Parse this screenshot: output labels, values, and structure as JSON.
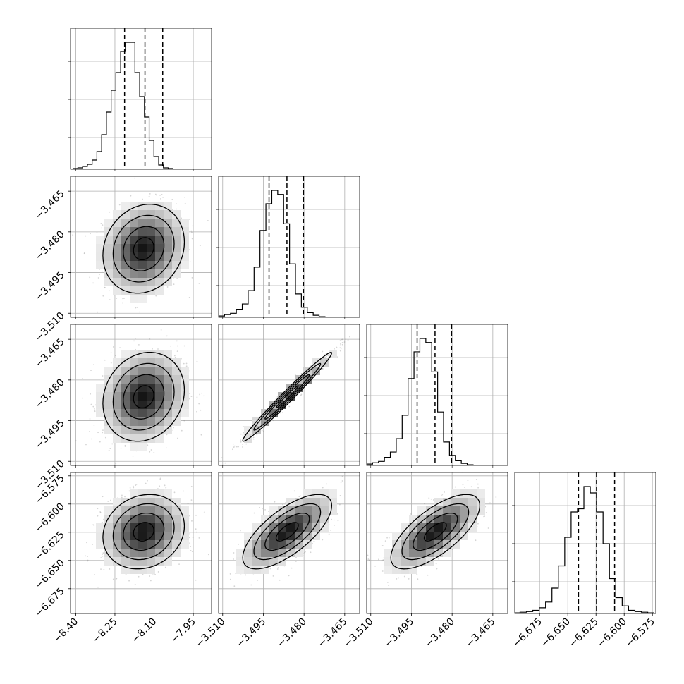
{
  "chart_data": {
    "type": "corner",
    "parameters": [
      {
        "index": 0,
        "hist": {
          "edges_start": -8.41,
          "edges_step": 0.0182,
          "counts": [
            1,
            2,
            4,
            7,
            13,
            25,
            49,
            81,
            112,
            137,
            167,
            180,
            180,
            137,
            103,
            74,
            41,
            18,
            6,
            2,
            1,
            0
          ],
          "ymax": 180,
          "quantiles": [
            -8.213,
            -8.135,
            -8.067
          ]
        },
        "ticks": [
          -8.4,
          -8.25,
          -8.1,
          -7.95
        ],
        "tick_labels": [
          "−8.40",
          "−8.25",
          "−8.10",
          "−7.95"
        ],
        "range": [
          -8.42,
          -7.88
        ]
      },
      {
        "index": 1,
        "hist": {
          "edges_start": -3.5115,
          "edges_step": 0.00218,
          "counts": [
            2,
            4,
            6,
            12,
            20,
            40,
            75,
            130,
            170,
            190,
            184,
            140,
            80,
            35,
            15,
            7,
            3,
            1,
            0,
            0,
            0,
            0
          ],
          "ymax": 190,
          "quantiles": [
            -3.4929,
            -3.4863,
            -3.4802
          ]
        },
        "ticks": [
          -3.51,
          -3.495,
          -3.48,
          -3.465
        ],
        "tick_labels": [
          "−3.510",
          "−3.495",
          "−3.480",
          "−3.465"
        ],
        "range": [
          -3.5115,
          -3.4595
        ]
      },
      {
        "index": 2,
        "hist": {
          "edges_start": -3.5115,
          "edges_step": 0.00218,
          "counts": [
            2,
            4,
            6,
            12,
            20,
            40,
            75,
            130,
            170,
            190,
            184,
            140,
            80,
            35,
            15,
            7,
            3,
            1,
            0,
            0,
            0,
            0
          ],
          "ymax": 190,
          "quantiles": [
            -3.4929,
            -3.4863,
            -3.4802
          ]
        },
        "ticks": [
          -3.51,
          -3.495,
          -3.48,
          -3.465
        ],
        "tick_labels": [
          "−3.510",
          "−3.495",
          "−3.480",
          "−3.465"
        ],
        "range": [
          -3.5115,
          -3.4595
        ]
      },
      {
        "index": 3,
        "hist": {
          "edges_start": -6.698,
          "edges_step": 0.00566,
          "counts": [
            1,
            2,
            3,
            5,
            9,
            18,
            40,
            75,
            120,
            160,
            165,
            200,
            190,
            160,
            110,
            55,
            25,
            12,
            5,
            3,
            2,
            1
          ],
          "ymax": 200,
          "quantiles": [
            -6.6405,
            -6.6245,
            -6.6085
          ]
        },
        "ticks": [
          -6.675,
          -6.65,
          -6.625,
          -6.6,
          -6.575
        ],
        "tick_labels": [
          "−6.675",
          "−6.650",
          "−6.625",
          "−6.600",
          "−6.575"
        ],
        "range": [
          -6.697,
          -6.572
        ]
      }
    ],
    "pairs": [
      {
        "row": 1,
        "col": 0,
        "mean": [
          -8.14,
          -3.4862
        ],
        "sd": [
          0.078,
          0.0082
        ],
        "rho": 0.15
      },
      {
        "row": 2,
        "col": 0,
        "mean": [
          -8.14,
          -3.4862
        ],
        "sd": [
          0.078,
          0.0082
        ],
        "rho": 0.15
      },
      {
        "row": 2,
        "col": 1,
        "mean": [
          -3.4862,
          -3.4862
        ],
        "sd": [
          0.0082,
          0.0082
        ],
        "rho": 0.985
      },
      {
        "row": 3,
        "col": 0,
        "mean": [
          -8.14,
          -6.6245
        ],
        "sd": [
          0.078,
          0.0165
        ],
        "rho": 0.15
      },
      {
        "row": 3,
        "col": 1,
        "mean": [
          -3.4862,
          -6.6245
        ],
        "sd": [
          0.0082,
          0.0165
        ],
        "rho": 0.7
      },
      {
        "row": 3,
        "col": 2,
        "mean": [
          -3.4862,
          -6.6245
        ],
        "sd": [
          0.0082,
          0.0165
        ],
        "rho": 0.7
      }
    ],
    "contour_levels": [
      0.5,
      1.0,
      1.5,
      2.0
    ],
    "colors": {
      "line": "#000000",
      "grid": "#b0b0b0",
      "scatter": "#888888"
    },
    "grid": true
  }
}
